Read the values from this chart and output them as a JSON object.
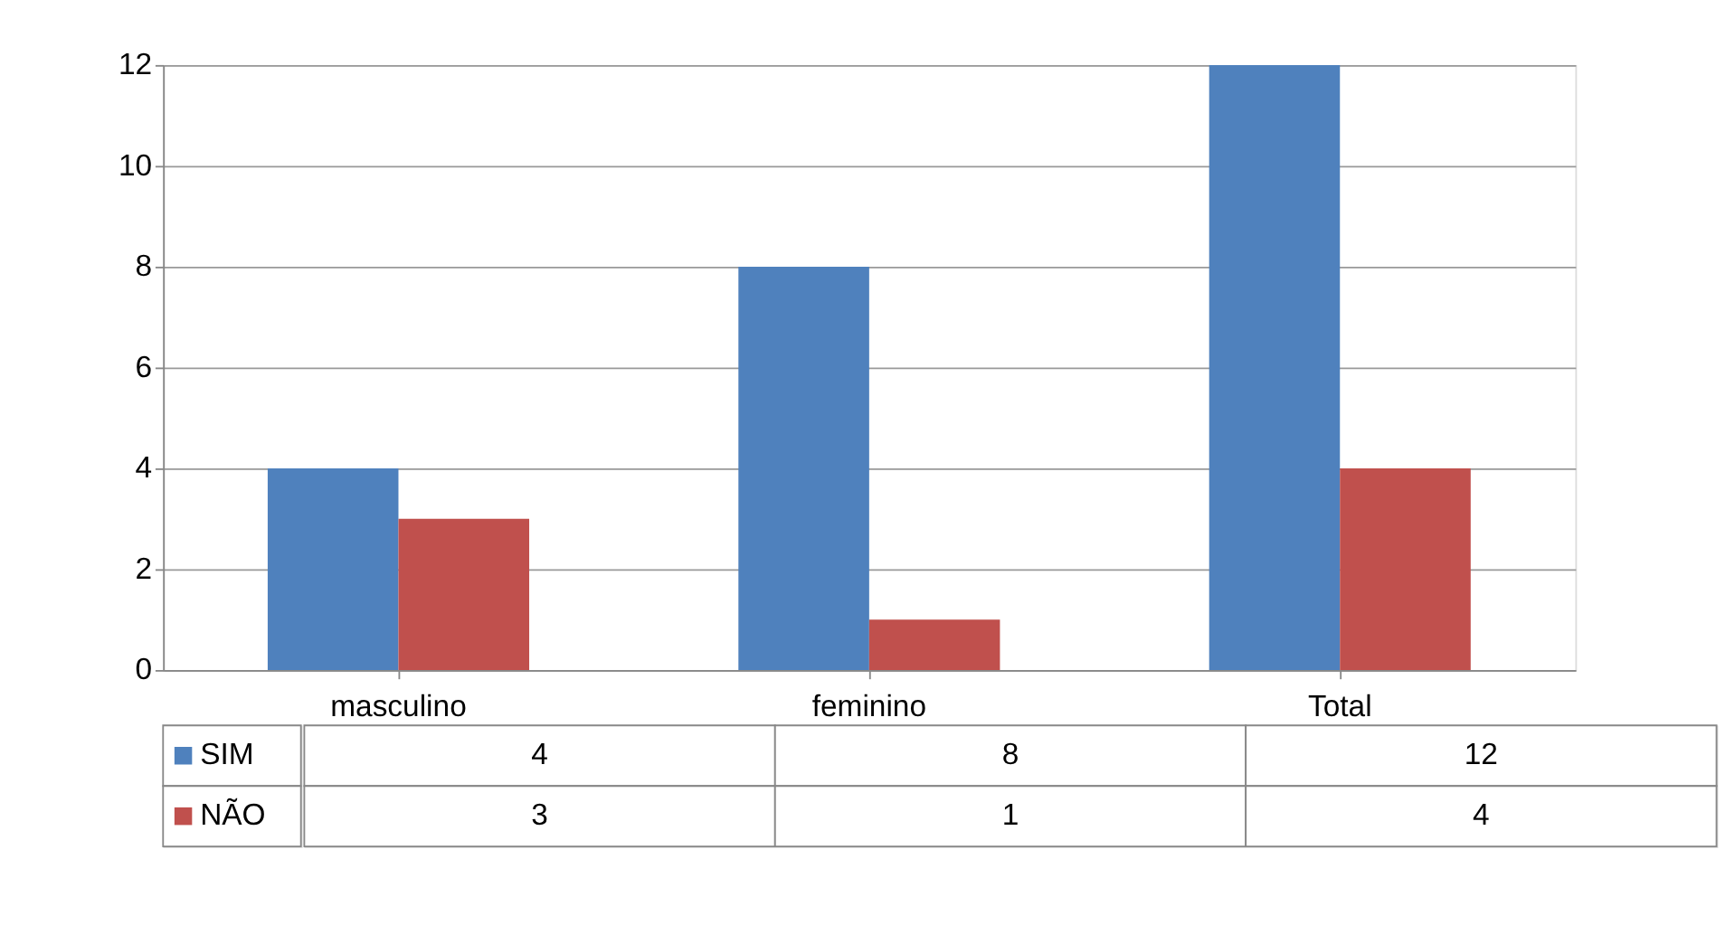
{
  "chart_data": {
    "type": "bar",
    "categories": [
      "masculino",
      "feminino",
      "Total"
    ],
    "series": [
      {
        "name": "SIM",
        "color": "#4f81bd",
        "values": [
          4,
          8,
          12
        ]
      },
      {
        "name": "NÃO",
        "color": "#c0504d",
        "values": [
          3,
          1,
          4
        ]
      }
    ],
    "ylim": [
      0,
      12
    ],
    "yticks": [
      0,
      2,
      4,
      6,
      8,
      10,
      12
    ],
    "grid": "y",
    "data_labels": true,
    "legend": "bottom"
  }
}
